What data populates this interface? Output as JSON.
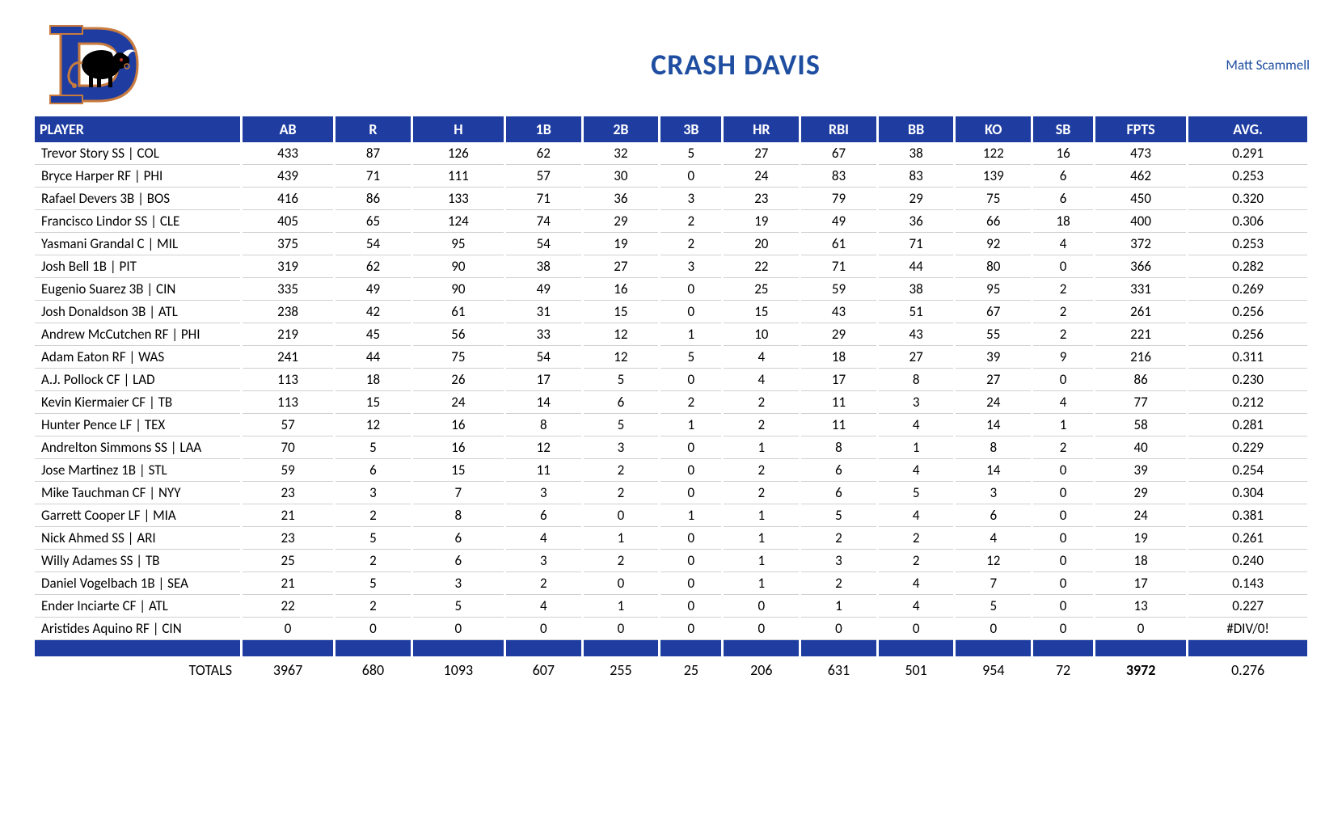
{
  "title": "CRASH DAVIS",
  "author": "Matt Scammell",
  "logo": {
    "primary": "#1f3da1",
    "accent": "#c97b3e",
    "bull_body": "#000000",
    "bull_horn": "#ffffff",
    "bull_tail": "#c97b3e"
  },
  "colors": {
    "header_bg": "#1f3da1",
    "header_fg": "#ffffff",
    "title": "#1f4ea1",
    "author": "#1f4ea1",
    "row_border": "#d0d0d0"
  },
  "columns": [
    "PLAYER",
    "AB",
    "R",
    "H",
    "1B",
    "2B",
    "3B",
    "HR",
    "RBI",
    "BB",
    "KO",
    "SB",
    "FPTS",
    "AVG."
  ],
  "rows": [
    [
      "Trevor Story SS | COL",
      433,
      87,
      126,
      62,
      32,
      5,
      27,
      67,
      38,
      122,
      16,
      473,
      "0.291"
    ],
    [
      "Bryce Harper RF | PHI",
      439,
      71,
      111,
      57,
      30,
      0,
      24,
      83,
      83,
      139,
      6,
      462,
      "0.253"
    ],
    [
      "Rafael Devers 3B | BOS",
      416,
      86,
      133,
      71,
      36,
      3,
      23,
      79,
      29,
      75,
      6,
      450,
      "0.320"
    ],
    [
      "Francisco Lindor SS | CLE",
      405,
      65,
      124,
      74,
      29,
      2,
      19,
      49,
      36,
      66,
      18,
      400,
      "0.306"
    ],
    [
      "Yasmani Grandal C | MIL",
      375,
      54,
      95,
      54,
      19,
      2,
      20,
      61,
      71,
      92,
      4,
      372,
      "0.253"
    ],
    [
      "Josh Bell 1B | PIT",
      319,
      62,
      90,
      38,
      27,
      3,
      22,
      71,
      44,
      80,
      0,
      366,
      "0.282"
    ],
    [
      "Eugenio Suarez 3B | CIN",
      335,
      49,
      90,
      49,
      16,
      0,
      25,
      59,
      38,
      95,
      2,
      331,
      "0.269"
    ],
    [
      "Josh Donaldson 3B | ATL",
      238,
      42,
      61,
      31,
      15,
      0,
      15,
      43,
      51,
      67,
      2,
      261,
      "0.256"
    ],
    [
      "Andrew McCutchen RF | PHI",
      219,
      45,
      56,
      33,
      12,
      1,
      10,
      29,
      43,
      55,
      2,
      221,
      "0.256"
    ],
    [
      "Adam Eaton RF | WAS",
      241,
      44,
      75,
      54,
      12,
      5,
      4,
      18,
      27,
      39,
      9,
      216,
      "0.311"
    ],
    [
      "A.J. Pollock CF | LAD",
      113,
      18,
      26,
      17,
      5,
      0,
      4,
      17,
      8,
      27,
      0,
      86,
      "0.230"
    ],
    [
      "Kevin Kiermaier CF | TB",
      113,
      15,
      24,
      14,
      6,
      2,
      2,
      11,
      3,
      24,
      4,
      77,
      "0.212"
    ],
    [
      "Hunter Pence LF | TEX",
      57,
      12,
      16,
      8,
      5,
      1,
      2,
      11,
      4,
      14,
      1,
      58,
      "0.281"
    ],
    [
      "Andrelton Simmons SS | LAA",
      70,
      5,
      16,
      12,
      3,
      0,
      1,
      8,
      1,
      8,
      2,
      40,
      "0.229"
    ],
    [
      "Jose Martinez 1B | STL",
      59,
      6,
      15,
      11,
      2,
      0,
      2,
      6,
      4,
      14,
      0,
      39,
      "0.254"
    ],
    [
      "Mike Tauchman CF | NYY",
      23,
      3,
      7,
      3,
      2,
      0,
      2,
      6,
      5,
      3,
      0,
      29,
      "0.304"
    ],
    [
      "Garrett Cooper LF | MIA",
      21,
      2,
      8,
      6,
      0,
      1,
      1,
      5,
      4,
      6,
      0,
      24,
      "0.381"
    ],
    [
      "Nick Ahmed SS | ARI",
      23,
      5,
      6,
      4,
      1,
      0,
      1,
      2,
      2,
      4,
      0,
      19,
      "0.261"
    ],
    [
      "Willy Adames SS | TB",
      25,
      2,
      6,
      3,
      2,
      0,
      1,
      3,
      2,
      12,
      0,
      18,
      "0.240"
    ],
    [
      "Daniel Vogelbach 1B | SEA",
      21,
      5,
      3,
      2,
      0,
      0,
      1,
      2,
      4,
      7,
      0,
      17,
      "0.143"
    ],
    [
      "Ender Inciarte CF | ATL",
      22,
      2,
      5,
      4,
      1,
      0,
      0,
      1,
      4,
      5,
      0,
      13,
      "0.227"
    ],
    [
      "Aristides Aquino RF | CIN",
      0,
      0,
      0,
      0,
      0,
      0,
      0,
      0,
      0,
      0,
      0,
      0,
      "#DIV/0!"
    ]
  ],
  "totals_label": "TOTALS",
  "totals": [
    3967,
    680,
    1093,
    607,
    255,
    25,
    206,
    631,
    501,
    954,
    72,
    3972,
    "0.276"
  ]
}
